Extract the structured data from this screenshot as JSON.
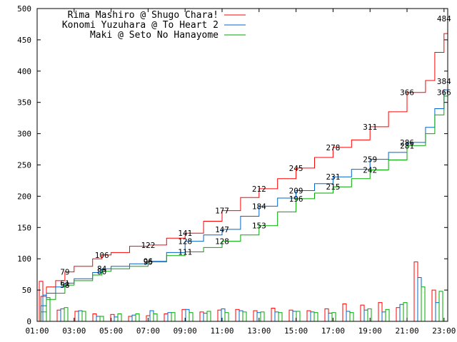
{
  "chart_data": {
    "type": "line",
    "title": "",
    "xlabel": "",
    "ylabel": "",
    "ylim": [
      0,
      500
    ],
    "xlim": [
      0,
      22.2
    ],
    "grid": false,
    "legend_placement": "top-left",
    "x_ticks": [
      {
        "x": 0,
        "label": "01:00"
      },
      {
        "x": 2,
        "label": "03:00"
      },
      {
        "x": 4,
        "label": "05:00"
      },
      {
        "x": 6,
        "label": "07:00"
      },
      {
        "x": 8,
        "label": "09:00"
      },
      {
        "x": 10,
        "label": "11:00"
      },
      {
        "x": 12,
        "label": "13:00"
      },
      {
        "x": 14,
        "label": "15:00"
      },
      {
        "x": 16,
        "label": "17:00"
      },
      {
        "x": 18,
        "label": "19:00"
      },
      {
        "x": 20,
        "label": "21:00"
      },
      {
        "x": 22,
        "label": "23:00"
      }
    ],
    "y_ticks": [
      {
        "y": 0,
        "label": "0"
      },
      {
        "y": 50,
        "label": "50"
      },
      {
        "y": 100,
        "label": "100"
      },
      {
        "y": 150,
        "label": "150"
      },
      {
        "y": 200,
        "label": "200"
      },
      {
        "y": 250,
        "label": "250"
      },
      {
        "y": 300,
        "label": "300"
      },
      {
        "y": 350,
        "label": "350"
      },
      {
        "y": 400,
        "label": "400"
      },
      {
        "y": 450,
        "label": "450"
      },
      {
        "y": 500,
        "label": "500"
      }
    ],
    "series": [
      {
        "name": "Rima Mashiro @ Shugo Chara!",
        "color": "#ff0000",
        "points": [
          [
            0,
            0
          ],
          [
            0.2,
            40
          ],
          [
            0.5,
            55
          ],
          [
            1,
            65
          ],
          [
            1.5,
            79
          ],
          [
            2,
            88
          ],
          [
            3,
            100
          ],
          [
            3.5,
            106
          ],
          [
            4,
            110
          ],
          [
            5,
            120
          ],
          [
            6,
            122
          ],
          [
            7,
            133
          ],
          [
            8,
            141
          ],
          [
            9,
            160
          ],
          [
            10,
            177
          ],
          [
            11,
            198
          ],
          [
            12,
            212
          ],
          [
            13,
            228
          ],
          [
            14,
            245
          ],
          [
            15,
            262
          ],
          [
            16,
            278
          ],
          [
            17,
            290
          ],
          [
            18,
            311
          ],
          [
            19,
            335
          ],
          [
            20,
            366
          ],
          [
            21,
            385
          ],
          [
            21.5,
            430
          ],
          [
            22,
            460
          ],
          [
            22.2,
            484
          ]
        ],
        "labels": [
          {
            "x": 1.5,
            "y": 79,
            "text": "79"
          },
          {
            "x": 3.5,
            "y": 106,
            "text": "106"
          },
          {
            "x": 6,
            "y": 122,
            "text": "122"
          },
          {
            "x": 8,
            "y": 141,
            "text": "141"
          },
          {
            "x": 10,
            "y": 177,
            "text": "177"
          },
          {
            "x": 12,
            "y": 212,
            "text": "212"
          },
          {
            "x": 14,
            "y": 245,
            "text": "245"
          },
          {
            "x": 16,
            "y": 278,
            "text": "278"
          },
          {
            "x": 18,
            "y": 311,
            "text": "311"
          },
          {
            "x": 20,
            "y": 366,
            "text": "366"
          },
          {
            "x": 22,
            "y": 484,
            "text": "484"
          }
        ],
        "hourly": [
          64,
          18,
          16,
          12,
          11,
          8,
          9,
          12,
          19,
          15,
          18,
          19,
          17,
          21,
          18,
          17,
          20,
          28,
          26,
          30,
          22,
          95,
          50
        ]
      },
      {
        "name": "Konomi Yuzuhara @ To Heart 2",
        "color": "#0066cc",
        "points": [
          [
            0,
            0
          ],
          [
            0.2,
            25
          ],
          [
            0.5,
            45
          ],
          [
            1,
            55
          ],
          [
            1.5,
            61
          ],
          [
            2,
            68
          ],
          [
            3,
            78
          ],
          [
            3.5,
            84
          ],
          [
            4,
            88
          ],
          [
            5,
            92
          ],
          [
            6,
            96
          ],
          [
            7,
            110
          ],
          [
            8,
            128
          ],
          [
            9,
            138
          ],
          [
            10,
            147
          ],
          [
            11,
            168
          ],
          [
            12,
            184
          ],
          [
            13,
            197
          ],
          [
            14,
            209
          ],
          [
            15,
            220
          ],
          [
            16,
            231
          ],
          [
            17,
            243
          ],
          [
            18,
            259
          ],
          [
            19,
            270
          ],
          [
            20,
            286
          ],
          [
            21,
            310
          ],
          [
            21.5,
            340
          ],
          [
            22,
            370
          ],
          [
            22.2,
            384
          ]
        ],
        "labels": [
          {
            "x": 1.5,
            "y": 61,
            "text": "61"
          },
          {
            "x": 3.5,
            "y": 84,
            "text": "84"
          },
          {
            "x": 6,
            "y": 96,
            "text": "96"
          },
          {
            "x": 8,
            "y": 128,
            "text": "128"
          },
          {
            "x": 10,
            "y": 147,
            "text": "147"
          },
          {
            "x": 12,
            "y": 184,
            "text": "184"
          },
          {
            "x": 14,
            "y": 209,
            "text": "209"
          },
          {
            "x": 16,
            "y": 231,
            "text": "231"
          },
          {
            "x": 18,
            "y": 259,
            "text": "259"
          },
          {
            "x": 20,
            "y": 286,
            "text": "286"
          },
          {
            "x": 22,
            "y": 384,
            "text": "384"
          }
        ],
        "hourly": [
          42,
          20,
          17,
          8,
          7,
          10,
          17,
          14,
          19,
          13,
          20,
          17,
          14,
          15,
          16,
          15,
          13,
          16,
          18,
          15,
          27,
          70,
          30
        ]
      },
      {
        "name": "Maki @ Seto No Hanayome",
        "color": "#00aa00",
        "points": [
          [
            0,
            0
          ],
          [
            0.2,
            15
          ],
          [
            0.5,
            35
          ],
          [
            1,
            45
          ],
          [
            1.5,
            58
          ],
          [
            2,
            65
          ],
          [
            3,
            74
          ],
          [
            3.5,
            80
          ],
          [
            4,
            84
          ],
          [
            5,
            88
          ],
          [
            6,
            95
          ],
          [
            7,
            105
          ],
          [
            8,
            111
          ],
          [
            9,
            118
          ],
          [
            10,
            128
          ],
          [
            11,
            138
          ],
          [
            12,
            153
          ],
          [
            13,
            175
          ],
          [
            14,
            196
          ],
          [
            15,
            205
          ],
          [
            16,
            215
          ],
          [
            17,
            228
          ],
          [
            18,
            242
          ],
          [
            19,
            258
          ],
          [
            20,
            281
          ],
          [
            21,
            300
          ],
          [
            21.5,
            330
          ],
          [
            22,
            360
          ],
          [
            22.2,
            366
          ]
        ],
        "labels": [
          {
            "x": 1.5,
            "y": 58,
            "text": "58"
          },
          {
            "x": 3.5,
            "y": 80,
            "text": "80"
          },
          {
            "x": 6,
            "y": 95,
            "text": "95"
          },
          {
            "x": 8,
            "y": 111,
            "text": "111"
          },
          {
            "x": 10,
            "y": 128,
            "text": "128"
          },
          {
            "x": 12,
            "y": 153,
            "text": "153"
          },
          {
            "x": 14,
            "y": 196,
            "text": "196"
          },
          {
            "x": 16,
            "y": 215,
            "text": "215"
          },
          {
            "x": 18,
            "y": 242,
            "text": "242"
          },
          {
            "x": 20,
            "y": 281,
            "text": "281"
          },
          {
            "x": 22,
            "y": 366,
            "text": "366"
          }
        ],
        "hourly": [
          38,
          22,
          16,
          8,
          12,
          12,
          12,
          14,
          14,
          16,
          14,
          15,
          15,
          14,
          16,
          14,
          14,
          14,
          20,
          19,
          30,
          55,
          48
        ]
      }
    ]
  }
}
